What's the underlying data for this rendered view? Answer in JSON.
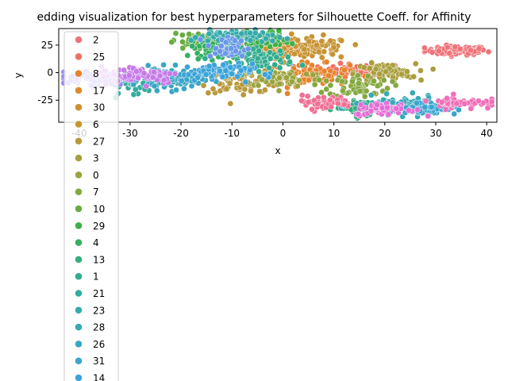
{
  "chart_data": {
    "type": "scatter",
    "title": "edding visualization for best hyperparameters for Silhouette Coeff. for Affinity",
    "xlabel": "x",
    "ylabel": "y",
    "xlim": [
      -44,
      42
    ],
    "ylim": [
      -45,
      40
    ],
    "x_ticks": [
      -40,
      -30,
      -20,
      -10,
      0,
      10,
      20,
      30,
      40
    ],
    "y_ticks": [
      -25,
      0,
      25
    ],
    "legend": {
      "placement": "upper-left",
      "visible_entries": [
        "2",
        "25",
        "8",
        "17",
        "30",
        "6",
        "27",
        "3",
        "0",
        "7",
        "10",
        "29",
        "4",
        "13",
        "1",
        "21",
        "23",
        "28",
        "26",
        "31",
        "14"
      ]
    },
    "series": [
      {
        "name": "2",
        "color": "#f0737a",
        "cx": 34,
        "cy": 20,
        "sx": 3,
        "sy": 2,
        "n": 90
      },
      {
        "name": "25",
        "color": "#f07060",
        "cx": 16,
        "cy": 2,
        "sx": 4,
        "sy": 3,
        "n": 90
      },
      {
        "name": "8",
        "color": "#e8822b",
        "cx": 5,
        "cy": -2,
        "sx": 4,
        "sy": 5,
        "n": 90
      },
      {
        "name": "17",
        "color": "#dc8a2e",
        "cx": -3,
        "cy": 20,
        "sx": 3,
        "sy": 4,
        "n": 70
      },
      {
        "name": "30",
        "color": "#d09030",
        "cx": 3,
        "cy": 22,
        "sx": 3,
        "sy": 4,
        "n": 60
      },
      {
        "name": "6",
        "color": "#c79433",
        "cx": 7,
        "cy": 22,
        "sx": 3,
        "sy": 5,
        "n": 60
      },
      {
        "name": "27",
        "color": "#b8993a",
        "cx": -8,
        "cy": -8,
        "sx": 4,
        "sy": 5,
        "n": 70
      },
      {
        "name": "3",
        "color": "#a89e3c",
        "cx": 20,
        "cy": 0,
        "sx": 3,
        "sy": 4,
        "n": 70
      },
      {
        "name": "0",
        "color": "#9aa33d",
        "cx": 0,
        "cy": -5,
        "sx": 4,
        "sy": 4,
        "n": 70
      },
      {
        "name": "7",
        "color": "#84a83e",
        "cx": 15,
        "cy": -12,
        "sx": 3,
        "sy": 5,
        "n": 60
      },
      {
        "name": "10",
        "color": "#66ad41",
        "cx": -16,
        "cy": 28,
        "sx": 3,
        "sy": 4,
        "n": 80
      },
      {
        "name": "29",
        "color": "#3fb045",
        "cx": -5,
        "cy": 30,
        "sx": 3,
        "sy": 4,
        "n": 80
      },
      {
        "name": "4",
        "color": "#34b060",
        "cx": -12,
        "cy": 22,
        "sx": 3,
        "sy": 5,
        "n": 70
      },
      {
        "name": "13",
        "color": "#33ae7c",
        "cx": 16,
        "cy": -32,
        "sx": 3,
        "sy": 3,
        "n": 80
      },
      {
        "name": "1",
        "color": "#32ad8e",
        "cx": -4,
        "cy": 12,
        "sx": 3,
        "sy": 5,
        "n": 80
      },
      {
        "name": "21",
        "color": "#33ab9e",
        "cx": -29,
        "cy": -8,
        "sx": 3,
        "sy": 5,
        "n": 60
      },
      {
        "name": "23",
        "color": "#35aaab",
        "cx": -10,
        "cy": 33,
        "sx": 4,
        "sy": 3,
        "n": 60
      },
      {
        "name": "28",
        "color": "#37a9b6",
        "cx": 22,
        "cy": -30,
        "sx": 4,
        "sy": 4,
        "n": 80
      },
      {
        "name": "26",
        "color": "#39a7c2",
        "cx": -22,
        "cy": -6,
        "sx": 3,
        "sy": 5,
        "n": 80
      },
      {
        "name": "31",
        "color": "#3aa5cf",
        "cx": 28,
        "cy": -32,
        "sx": 3,
        "sy": 3,
        "n": 80
      },
      {
        "name": "14",
        "color": "#3ba3da",
        "cx": -14,
        "cy": 0,
        "sx": 4,
        "sy": 4,
        "n": 80
      },
      {
        "name": "",
        "color": "#6a98e8",
        "cx": -11,
        "cy": 22,
        "sx": 2,
        "sy": 5,
        "n": 40
      },
      {
        "name": "",
        "color": "#9a88ee",
        "cx": -36,
        "cy": -5,
        "sx": 3,
        "sy": 3,
        "n": 90
      },
      {
        "name": "",
        "color": "#c77ae8",
        "cx": -28,
        "cy": -2,
        "sx": 4,
        "sy": 4,
        "n": 80
      },
      {
        "name": "",
        "color": "#e56fd6",
        "cx": 20,
        "cy": -33,
        "sx": 3,
        "sy": 3,
        "n": 60
      },
      {
        "name": "",
        "color": "#f06fb8",
        "cx": 35,
        "cy": -27,
        "sx": 3,
        "sy": 3,
        "n": 50
      },
      {
        "name": "",
        "color": "#f07096",
        "cx": 8,
        "cy": -27,
        "sx": 3,
        "sy": 3,
        "n": 40
      }
    ]
  }
}
